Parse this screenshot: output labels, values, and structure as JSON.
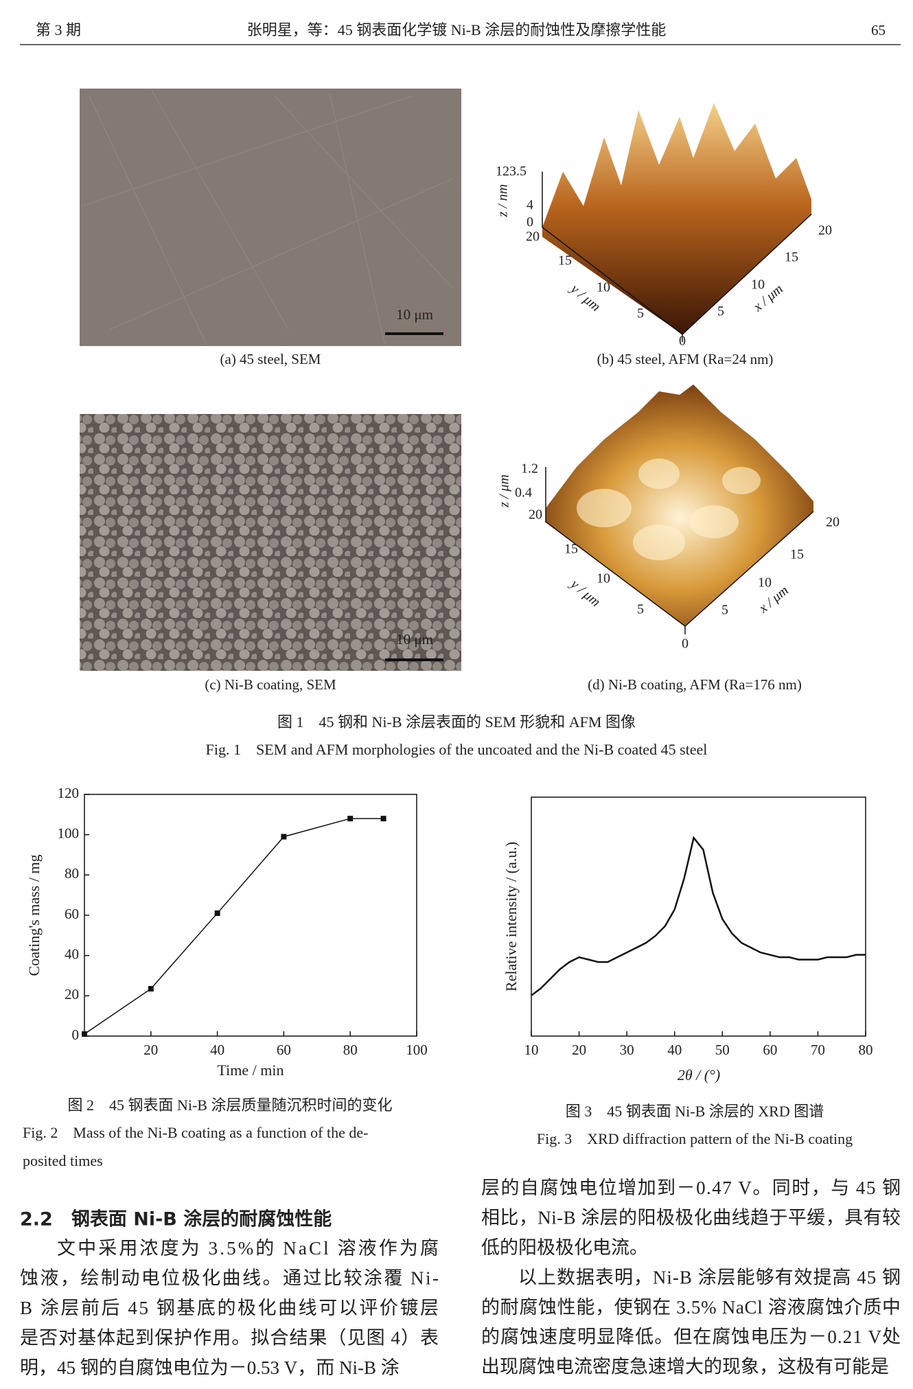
{
  "header": {
    "issue": "第 3 期",
    "running_title": "张明星，等：45 钢表面化学镀 Ni-B 涂层的耐蚀性及摩擦学性能",
    "page": "65"
  },
  "figure1": {
    "panels": [
      {
        "caption": "(a) 45 steel, SEM",
        "scale_bar": "10 μm"
      },
      {
        "caption": "(b) 45 steel, AFM (Ra=24 nm)",
        "z_label": "z / nm",
        "y_label": "y / μm",
        "x_label": "x / μm",
        "z_ticks": [
          "123.5",
          "4",
          "0"
        ],
        "y_ticks": [
          "20",
          "15",
          "10",
          "5"
        ],
        "x_ticks": [
          "0",
          "5",
          "10",
          "15",
          "20"
        ]
      },
      {
        "caption": "(c) Ni-B coating, SEM",
        "scale_bar": "10 μm"
      },
      {
        "caption": "(d) Ni-B coating, AFM (Ra=176 nm)",
        "z_label": "z / μm",
        "y_label": "y / μm",
        "x_label": "x / μm",
        "z_ticks": [
          "1.2",
          "0.4"
        ],
        "y_ticks": [
          "20",
          "15",
          "10",
          "5"
        ],
        "x_ticks": [
          "0",
          "5",
          "10",
          "15",
          "20"
        ]
      }
    ],
    "caption_cn": "图 1　45 钢和 Ni-B 涂层表面的 SEM 形貌和 AFM 图像",
    "caption_en": "Fig. 1　SEM and AFM morphologies of the uncoated and the Ni-B coated 45 steel"
  },
  "figure2": {
    "type": "line",
    "x": [
      0,
      20,
      40,
      60,
      80,
      90
    ],
    "values": [
      1,
      23.5,
      61,
      99,
      108,
      108
    ],
    "xlim": [
      0,
      100
    ],
    "ylim": [
      0,
      120
    ],
    "xticks": [
      20,
      40,
      60,
      80,
      100
    ],
    "yticks": [
      0,
      20,
      40,
      60,
      80,
      100,
      120
    ],
    "xlabel": "Time / min",
    "ylabel": "Coating's mass / mg",
    "caption_cn": "图 2　45 钢表面 Ni-B 涂层质量随沉积时间的变化",
    "caption_en": [
      "Fig. 2　Mass of the Ni-B coating as a function of the de-",
      "posited times"
    ]
  },
  "figure3": {
    "type": "line",
    "x": [
      10,
      12,
      14,
      16,
      18,
      20,
      22,
      24,
      26,
      28,
      30,
      32,
      34,
      36,
      38,
      40,
      42,
      44,
      46,
      48,
      50,
      52,
      54,
      56,
      58,
      60,
      62,
      64,
      66,
      68,
      70,
      72,
      74,
      76,
      78,
      80
    ],
    "values": [
      17,
      20,
      24,
      28,
      31,
      33,
      32,
      31,
      31,
      33,
      35,
      37,
      39,
      42,
      46,
      53,
      66,
      83,
      78,
      60,
      49,
      43,
      39,
      37,
      35,
      34,
      33,
      33,
      32,
      32,
      32,
      33,
      33,
      33,
      34,
      34
    ],
    "xlim": [
      10,
      80
    ],
    "ylim": [
      0,
      100
    ],
    "xticks": [
      10,
      20,
      30,
      40,
      50,
      60,
      70,
      80
    ],
    "xlabel": "2θ / (°)",
    "ylabel": "Relative intensity / (a.u.)",
    "caption_cn": "图 3　45 钢表面 Ni-B 涂层的 XRD 图谱",
    "caption_en": "Fig. 3　XRD diffraction pattern of the Ni-B coating"
  },
  "body": {
    "section_heading": "2.2　钢表面 Ni-B 涂层的耐腐蚀性能",
    "left_paragraphs": [
      {
        "lines": [
          "文中采用浓度为 3.5%的 NaCl 溶液作为腐",
          "蚀液，绘制动电位极化曲线。通过比较涂覆 Ni-",
          "B 涂层前后 45 钢基底的极化曲线可以评价镀层",
          "是否对基体起到保护作用。拟合结果（见图 4）表",
          "明，45 钢的自腐蚀电位为－0.53 V，而 Ni-B 涂"
        ]
      }
    ],
    "right_paragraphs": [
      {
        "lines": [
          "层的自腐蚀电位增加到－0.47 V。同时，与 45 钢",
          "相比，Ni-B 涂层的阳极极化曲线趋于平缓，具有较",
          "低的阳极极化电流。"
        ]
      },
      {
        "lines": [
          "以上数据表明，Ni-B 涂层能够有效提高 45 钢",
          "的耐腐蚀性能，使钢在 3.5% NaCl 溶液腐蚀介质中",
          "的腐蚀速度明显降低。但在腐蚀电压为－0.21 V处",
          "出现腐蚀电流密度急速增大的现象，这极有可能是"
        ]
      }
    ]
  }
}
